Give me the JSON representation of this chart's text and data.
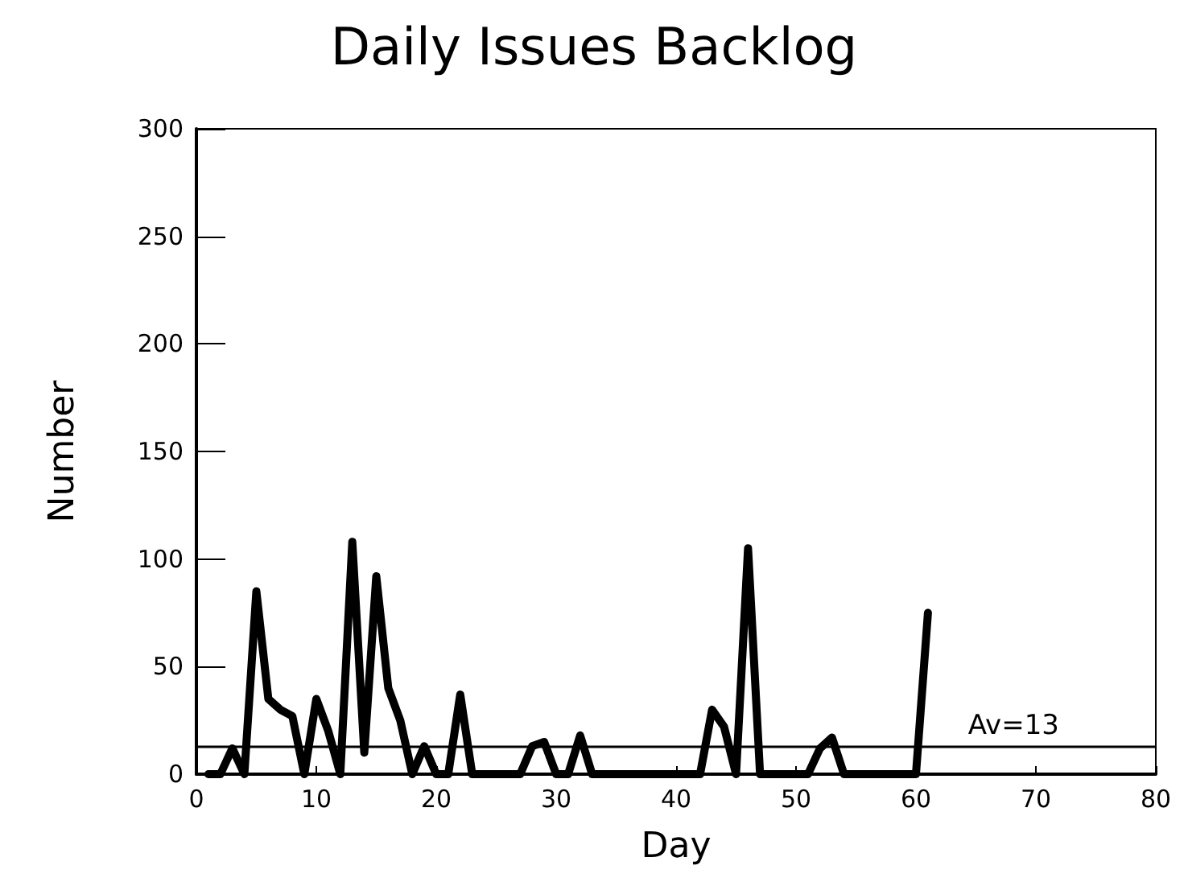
{
  "chart_data": {
    "type": "line",
    "title": "Daily Issues Backlog",
    "xlabel": "Day",
    "ylabel": "Number",
    "x": [
      1,
      2,
      3,
      4,
      5,
      6,
      7,
      8,
      9,
      10,
      11,
      12,
      13,
      14,
      15,
      16,
      17,
      18,
      19,
      20,
      21,
      22,
      23,
      24,
      25,
      26,
      27,
      28,
      29,
      30,
      31,
      32,
      33,
      34,
      35,
      36,
      37,
      38,
      39,
      40,
      41,
      42,
      43,
      44,
      45,
      46,
      47,
      48,
      49,
      50,
      51,
      52,
      53,
      54,
      55,
      56,
      57,
      58,
      59,
      60,
      61
    ],
    "series": [
      {
        "color": "#000000",
        "values": [
          0,
          0,
          12,
          0,
          85,
          35,
          30,
          27,
          0,
          35,
          20,
          0,
          108,
          10,
          92,
          40,
          25,
          0,
          13,
          0,
          0,
          37,
          0,
          0,
          0,
          0,
          0,
          13,
          15,
          0,
          0,
          18,
          0,
          0,
          0,
          0,
          0,
          0,
          0,
          0,
          0,
          0,
          30,
          22,
          0,
          105,
          0,
          0,
          0,
          0,
          0,
          12,
          17,
          0,
          0,
          0,
          0,
          0,
          0,
          0,
          75
        ]
      }
    ],
    "xlim": [
      0,
      80
    ],
    "xticks": [
      0,
      10,
      20,
      30,
      40,
      50,
      60,
      70,
      80
    ],
    "ylim": [
      0,
      300
    ],
    "yticks": [
      0,
      50,
      100,
      150,
      200,
      250,
      300
    ],
    "ref_lines": [
      {
        "axis": "y",
        "value": 13,
        "label": "Av=13",
        "color": "#000000"
      }
    ],
    "grid": false,
    "marker": "none",
    "line_style": "solid"
  }
}
